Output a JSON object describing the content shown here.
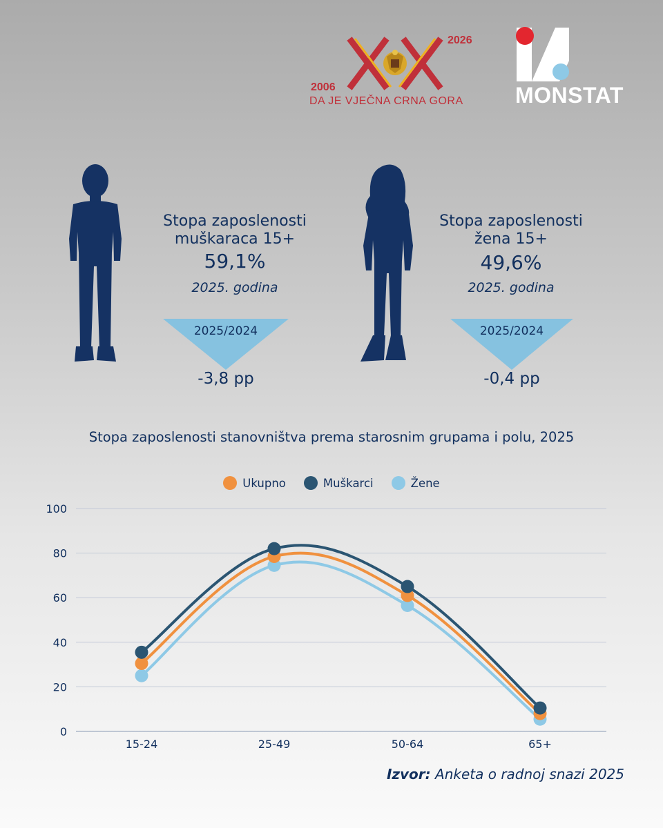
{
  "logos": {
    "anniversary": {
      "year_start": "2006",
      "year_end": "2026",
      "slogan": "DA JE VJEČNA CRNA GORA"
    },
    "monstat": {
      "name": "MONSTAT"
    }
  },
  "stats": {
    "men": {
      "title_line1": "Stopa zaposlenosti",
      "title_line2": "muškaraca 15+",
      "value": "59,1%",
      "year": "2025. godina",
      "compare": "2025/2024",
      "change": "-3,8 pp"
    },
    "women": {
      "title_line1": "Stopa zaposlenosti",
      "title_line2": "žena 15+",
      "value": "49,6%",
      "year": "2025. godina",
      "compare": "2025/2024",
      "change": "-0,4 pp"
    }
  },
  "colors": {
    "navy": "#12305e",
    "silhouette": "#153263",
    "triangle": "#86c2e0",
    "ukupno": "#f0913f",
    "muskarci": "#2b5572",
    "zene": "#8ec9e6",
    "logo_red": "#c0303a",
    "logo_gold": "#f0b020"
  },
  "chart_data": {
    "type": "line",
    "title": "Stopa zaposlenosti stanovništva prema starosnim grupama i polu, 2025",
    "categories": [
      "15-24",
      "25-49",
      "50-64",
      "65+"
    ],
    "series": [
      {
        "name": "Ukupno",
        "values": [
          30.5,
          78.5,
          61.0,
          8.0
        ],
        "color": "#f0913f"
      },
      {
        "name": "Muškarci",
        "values": [
          35.5,
          82.0,
          65.0,
          10.5
        ],
        "color": "#2b5572"
      },
      {
        "name": "Žene",
        "values": [
          25.0,
          74.5,
          56.5,
          5.5
        ],
        "color": "#8ec9e6"
      }
    ],
    "ylim": [
      0,
      100
    ],
    "yticks": [
      0,
      20,
      40,
      60,
      80,
      100
    ],
    "grid": true,
    "legend": "top-center",
    "xlabel": "",
    "ylabel": ""
  },
  "source": {
    "label": "Izvor:",
    "text": "Anketa o radnoj snazi 2025"
  }
}
